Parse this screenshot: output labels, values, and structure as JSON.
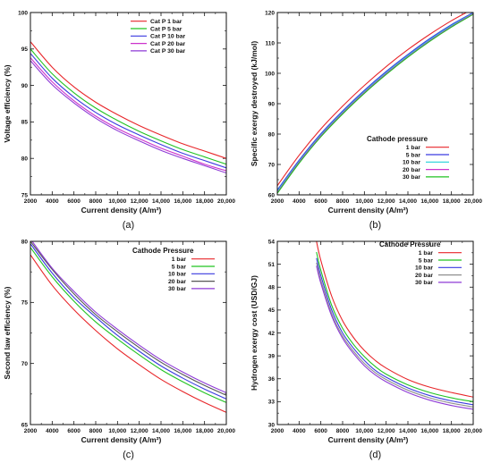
{
  "chart_data": [
    {
      "type": "line",
      "panel_label": "(a)",
      "xlabel": "Current density (A/m²)",
      "ylabel": "Voltage efficiency (%)",
      "xlim": [
        2000,
        20000
      ],
      "ylim": [
        75,
        100
      ],
      "x_ticks": [
        2000,
        4000,
        6000,
        8000,
        10000,
        12000,
        14000,
        16000,
        18000,
        20000
      ],
      "x_tick_labels": [
        "2000",
        "4000",
        "6000",
        "8000",
        "10,000",
        "12,000",
        "14,000",
        "16,000",
        "18,000",
        "20,000"
      ],
      "y_ticks": [
        75,
        80,
        85,
        90,
        95,
        100
      ],
      "y_tick_labels": [
        "75",
        "80",
        "85",
        "90",
        "95",
        "100"
      ],
      "legend_title": "",
      "legend_position": "top-right",
      "x": [
        2000,
        4000,
        6000,
        8000,
        10000,
        12000,
        14000,
        16000,
        18000,
        20000
      ],
      "series": [
        {
          "name": "Cat P  1 bar",
          "color": "#e8262a",
          "values": [
            96.0,
            92.5,
            89.8,
            87.7,
            86.0,
            84.5,
            83.2,
            82.0,
            81.0,
            80.0
          ]
        },
        {
          "name": "Cat P  5 bar",
          "color": "#22c322",
          "values": [
            95.0,
            91.6,
            89.0,
            86.9,
            85.2,
            83.7,
            82.4,
            81.2,
            80.2,
            79.2
          ]
        },
        {
          "name": "Cat P  10 bar",
          "color": "#3a3ae0",
          "values": [
            94.4,
            91.0,
            88.4,
            86.3,
            84.6,
            83.2,
            81.9,
            80.7,
            79.7,
            78.7
          ]
        },
        {
          "name": "Cat P  20 bar",
          "color": "#cc33cc",
          "values": [
            93.8,
            90.5,
            87.9,
            85.8,
            84.1,
            82.7,
            81.4,
            80.3,
            79.2,
            78.3
          ]
        },
        {
          "name": "Cat P  30 bar",
          "color": "#8e3ad6",
          "values": [
            93.4,
            90.1,
            87.6,
            85.5,
            83.8,
            82.4,
            81.1,
            80.0,
            79.0,
            78.0
          ]
        }
      ]
    },
    {
      "type": "line",
      "panel_label": "(b)",
      "xlabel": "Current density (A/m²)",
      "ylabel": "Specific exergy destroyed (kJ/mol)",
      "xlim": [
        2000,
        20000
      ],
      "ylim": [
        60,
        120
      ],
      "x_ticks": [
        2000,
        4000,
        6000,
        8000,
        10000,
        12000,
        14000,
        16000,
        18000,
        20000
      ],
      "x_tick_labels": [
        "2000",
        "4000",
        "6000",
        "8000",
        "10,000",
        "12,000",
        "14,000",
        "16,000",
        "18,000",
        "20,000"
      ],
      "y_ticks": [
        60,
        70,
        80,
        90,
        100,
        110,
        120
      ],
      "y_tick_labels": [
        "60",
        "70",
        "80",
        "90",
        "100",
        "110",
        "120"
      ],
      "legend_title": "Cathode pressure",
      "legend_position": "lower-right",
      "x": [
        2000,
        4000,
        6000,
        8000,
        10000,
        12000,
        14000,
        16000,
        18000,
        20000
      ],
      "series": [
        {
          "name": "1 bar",
          "color": "#e8262a",
          "values": [
            63.0,
            73.0,
            81.7,
            89.2,
            96.0,
            102.2,
            107.8,
            112.8,
            117.3,
            121.2
          ]
        },
        {
          "name": "5 bar",
          "color": "#3a3ae0",
          "values": [
            61.6,
            71.4,
            80.1,
            87.6,
            94.4,
            100.6,
            106.2,
            111.4,
            116.0,
            120.0
          ]
        },
        {
          "name": "10 bar",
          "color": "#22d0d8",
          "values": [
            61.2,
            71.0,
            79.7,
            87.2,
            94.0,
            100.2,
            105.8,
            111.0,
            115.7,
            119.8
          ]
        },
        {
          "name": "20 bar",
          "color": "#cc33cc",
          "values": [
            60.8,
            70.7,
            79.4,
            86.9,
            93.7,
            99.9,
            105.5,
            110.7,
            115.4,
            119.6
          ]
        },
        {
          "name": "30 bar",
          "color": "#22c322",
          "values": [
            60.5,
            70.4,
            79.1,
            86.6,
            93.4,
            99.6,
            105.3,
            110.5,
            115.2,
            119.4
          ]
        }
      ]
    },
    {
      "type": "line",
      "panel_label": "(c)",
      "xlabel": "Current density (A/m²)",
      "ylabel": "Second law efficiency (%)",
      "xlim": [
        2000,
        20000
      ],
      "ylim": [
        65,
        80
      ],
      "x_ticks": [
        2000,
        4000,
        6000,
        8000,
        10000,
        12000,
        14000,
        16000,
        18000,
        20000
      ],
      "x_tick_labels": [
        "2000",
        "4000",
        "6000",
        "8000",
        "10,000",
        "12,000",
        "14,000",
        "16,000",
        "18,000",
        "20,000"
      ],
      "y_ticks": [
        65,
        70,
        75,
        80
      ],
      "y_tick_labels": [
        "65",
        "70",
        "75",
        "80"
      ],
      "legend_title": "Cathode Pressure",
      "legend_position": "top-right",
      "x": [
        2000,
        4000,
        6000,
        8000,
        10000,
        12000,
        14000,
        16000,
        18000,
        20000
      ],
      "series": [
        {
          "name": "1 bar",
          "color": "#e8262a",
          "values": [
            78.9,
            76.4,
            74.4,
            72.7,
            71.2,
            69.9,
            68.7,
            67.7,
            66.8,
            66.0
          ]
        },
        {
          "name": "5 bar",
          "color": "#22c322",
          "values": [
            79.5,
            77.1,
            75.1,
            73.4,
            72.0,
            70.7,
            69.5,
            68.5,
            67.6,
            66.8
          ]
        },
        {
          "name": "10 bar",
          "color": "#3a3ae0",
          "values": [
            79.8,
            77.4,
            75.4,
            73.8,
            72.3,
            71.0,
            69.8,
            68.8,
            67.9,
            67.1
          ]
        },
        {
          "name": "20 bar",
          "color": "#555555",
          "values": [
            80.0,
            77.7,
            75.7,
            74.0,
            72.6,
            71.3,
            70.1,
            69.1,
            68.2,
            67.4
          ]
        },
        {
          "name": "30 bar",
          "color": "#8e3ad6",
          "values": [
            80.2,
            77.8,
            75.9,
            74.2,
            72.8,
            71.5,
            70.3,
            69.3,
            68.4,
            67.6
          ]
        }
      ]
    },
    {
      "type": "line",
      "panel_label": "(d)",
      "xlabel": "Current density (A/m²)",
      "ylabel": "Hydrogen exergy cost (USD/GJ)",
      "xlim": [
        2000,
        20000
      ],
      "ylim": [
        30,
        54
      ],
      "x_ticks": [
        2000,
        4000,
        6000,
        8000,
        10000,
        12000,
        14000,
        16000,
        18000,
        20000
      ],
      "x_tick_labels": [
        "2000",
        "4000",
        "6000",
        "8000",
        "10,000",
        "12,000",
        "14,000",
        "16,000",
        "18,000",
        "20,000"
      ],
      "y_ticks": [
        30,
        33,
        36,
        39,
        42,
        45,
        48,
        51,
        54
      ],
      "y_tick_labels": [
        "30",
        "33",
        "36",
        "39",
        "42",
        "45",
        "48",
        "51",
        "54"
      ],
      "legend_title": "Cathode Pressure",
      "legend_position": "top-right",
      "x": [
        5600,
        6000,
        7000,
        8000,
        9000,
        10000,
        11000,
        12000,
        14000,
        16000,
        18000,
        20000
      ],
      "series": [
        {
          "name": "1 bar",
          "color": "#e8262a",
          "values": [
            54.0,
            51.5,
            46.8,
            43.6,
            41.4,
            39.7,
            38.4,
            37.4,
            35.9,
            34.9,
            34.2,
            33.6
          ]
        },
        {
          "name": "5 bar",
          "color": "#22c322",
          "values": [
            52.6,
            50.2,
            45.6,
            42.6,
            40.5,
            38.9,
            37.6,
            36.6,
            35.2,
            34.2,
            33.5,
            33.0
          ]
        },
        {
          "name": "10 bar",
          "color": "#3a3ae0",
          "values": [
            51.8,
            49.5,
            45.0,
            42.0,
            40.0,
            38.4,
            37.1,
            36.2,
            34.8,
            33.8,
            33.1,
            32.6
          ]
        },
        {
          "name": "20 bar",
          "color": "#8f8f8f",
          "values": [
            51.2,
            48.9,
            44.5,
            41.6,
            39.6,
            38.0,
            36.8,
            35.9,
            34.5,
            33.5,
            32.8,
            32.3
          ]
        },
        {
          "name": "30 bar",
          "color": "#8e3ad6",
          "values": [
            50.8,
            48.5,
            44.2,
            41.3,
            39.3,
            37.7,
            36.5,
            35.6,
            34.2,
            33.2,
            32.5,
            32.0
          ]
        }
      ]
    }
  ]
}
